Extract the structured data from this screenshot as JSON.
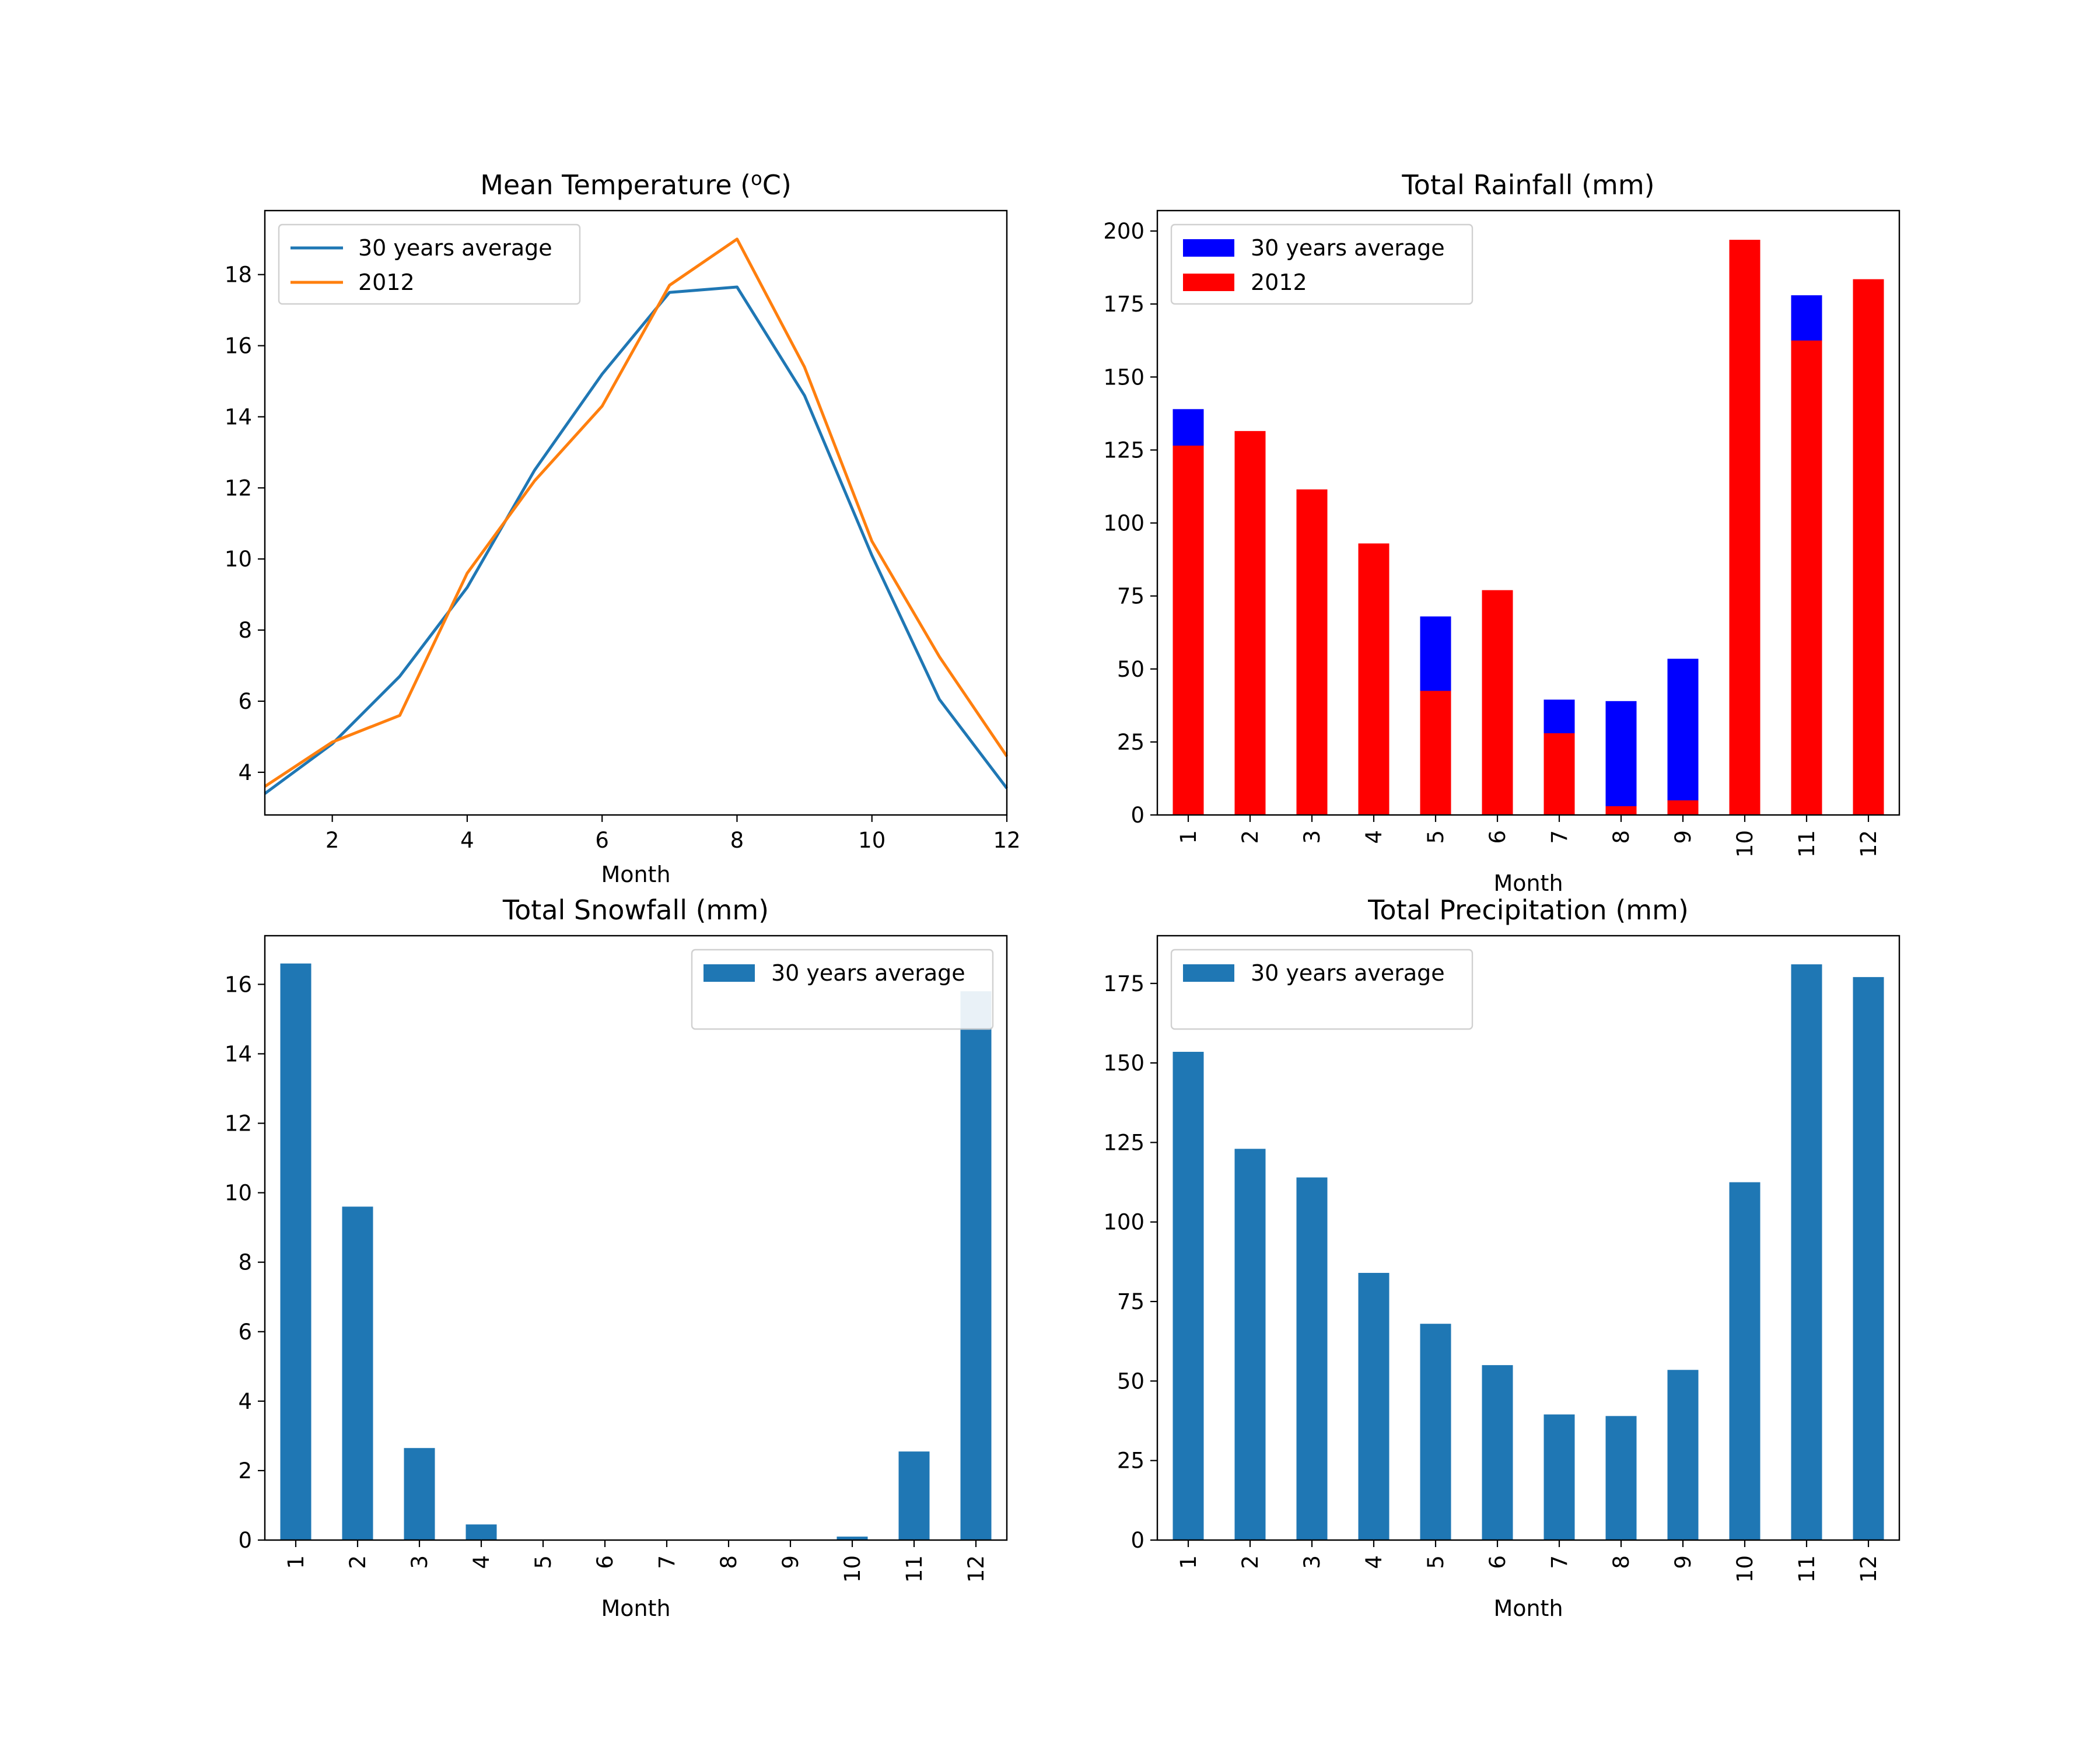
{
  "colors": {
    "avg_line": "#1f77b4",
    "line_2012": "#ff7f0e",
    "rain_avg": "#0000ff",
    "rain_2012": "#ff0000",
    "bar_default": "#1f77b4"
  },
  "chart_data": [
    {
      "type": "line",
      "title": "Mean Temperature (",
      "title_sup": "o",
      "title_tail": "C)",
      "xlabel": "Month",
      "ylabel": "",
      "xlim": [
        1,
        12
      ],
      "ylim": [
        2.8,
        19.8
      ],
      "xticks": [
        2,
        4,
        6,
        8,
        10,
        12
      ],
      "yticks": [
        4,
        6,
        8,
        10,
        12,
        14,
        16,
        18
      ],
      "x": [
        1,
        2,
        3,
        4,
        5,
        6,
        7,
        8,
        9,
        10,
        11,
        12
      ],
      "series": [
        {
          "name": "30 years average",
          "values": [
            3.4,
            4.8,
            6.7,
            9.2,
            12.5,
            15.2,
            17.5,
            17.65,
            14.6,
            10.1,
            6.05,
            3.55
          ]
        },
        {
          "name": "2012",
          "values": [
            3.6,
            4.85,
            5.6,
            9.6,
            12.2,
            14.3,
            17.7,
            19.0,
            15.4,
            10.5,
            7.25,
            4.45
          ]
        }
      ],
      "legend": "upper-left"
    },
    {
      "type": "bar",
      "title": "Total Rainfall (mm)",
      "xlabel": "Month",
      "ylabel": "",
      "ylim": [
        0,
        207
      ],
      "yticks": [
        0,
        25,
        50,
        75,
        100,
        125,
        150,
        175,
        200
      ],
      "categories": [
        "1",
        "2",
        "3",
        "4",
        "5",
        "6",
        "7",
        "8",
        "9",
        "10",
        "11",
        "12"
      ],
      "series": [
        {
          "name": "30 years average",
          "values": [
            139,
            131,
            111,
            92,
            68,
            76,
            39.5,
            39,
            53.5,
            112,
            178,
            176
          ]
        },
        {
          "name": "2012",
          "values": [
            126.5,
            131.5,
            111.5,
            93,
            42.5,
            77,
            28,
            3,
            5,
            197,
            162.5,
            183.5
          ]
        }
      ],
      "legend": "upper-left"
    },
    {
      "type": "bar",
      "title": "Total Snowfall (mm)",
      "xlabel": "Month",
      "ylabel": "",
      "ylim": [
        0,
        17.4
      ],
      "yticks": [
        0,
        2,
        4,
        6,
        8,
        10,
        12,
        14,
        16
      ],
      "categories": [
        "1",
        "2",
        "3",
        "4",
        "5",
        "6",
        "7",
        "8",
        "9",
        "10",
        "11",
        "12"
      ],
      "series": [
        {
          "name": "30 years average",
          "values": [
            16.6,
            9.6,
            2.65,
            0.45,
            0,
            0,
            0,
            0,
            0,
            0.1,
            2.55,
            15.8
          ]
        }
      ],
      "legend": "upper-right"
    },
    {
      "type": "bar",
      "title": "Total Precipitation (mm)",
      "xlabel": "Month",
      "ylabel": "",
      "ylim": [
        0,
        190
      ],
      "yticks": [
        0,
        25,
        50,
        75,
        100,
        125,
        150,
        175
      ],
      "categories": [
        "1",
        "2",
        "3",
        "4",
        "5",
        "6",
        "7",
        "8",
        "9",
        "10",
        "11",
        "12"
      ],
      "series": [
        {
          "name": "30 years average",
          "values": [
            153.5,
            123,
            114,
            84,
            68,
            55,
            39.5,
            39,
            53.5,
            112.5,
            181,
            177
          ]
        }
      ],
      "legend": "upper-left"
    }
  ]
}
